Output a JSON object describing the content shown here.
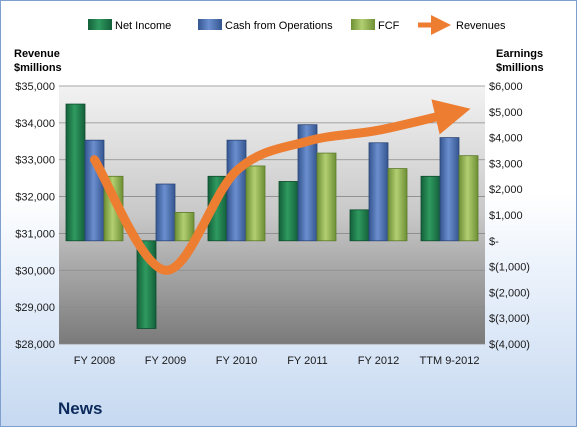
{
  "chart_data": {
    "type": "bar",
    "categories": [
      "FY 2008",
      "FY 2009",
      "FY 2010",
      "FY 2011",
      "FY 2012",
      "TTM 9-2012"
    ],
    "series": [
      {
        "name": "Net Income",
        "axis": "right",
        "values": [
          5300,
          -3400,
          2500,
          2300,
          1200,
          2500
        ],
        "color": "#1f7a4a"
      },
      {
        "name": "Cash from Operations",
        "axis": "right",
        "values": [
          3900,
          2200,
          3900,
          4500,
          3800,
          4000
        ],
        "color": "#4a6fb0"
      },
      {
        "name": "FCF",
        "axis": "right",
        "values": [
          2500,
          1100,
          2900,
          3400,
          2800,
          3300
        ],
        "color": "#8fb050"
      }
    ],
    "line_series": {
      "name": "Revenues",
      "axis": "left",
      "values": [
        33000,
        30000,
        32700,
        33500,
        33800,
        34250
      ],
      "color": "#ed7d31"
    },
    "left_axis": {
      "title": "Revenue $millions",
      "ylim": [
        28000,
        35000
      ],
      "ticks": [
        "$28,000",
        "$29,000",
        "$30,000",
        "$31,000",
        "$32,000",
        "$33,000",
        "$34,000",
        "$35,000"
      ]
    },
    "right_axis": {
      "title": "Earnings $millions",
      "ylim": [
        -4000,
        6000
      ],
      "ticks": [
        "$(4,000)",
        "$(3,000)",
        "$(2,000)",
        "$(1,000)",
        "$-",
        "$1,000",
        "$2,000",
        "$3,000",
        "$4,000",
        "$5,000",
        "$6,000"
      ]
    },
    "legend": {
      "position": "top",
      "items": [
        "Net Income",
        "Cash from Operations",
        "FCF",
        "Revenues"
      ]
    },
    "grid": true
  },
  "labels": {
    "left_title_line1": "Revenue",
    "left_title_line2": "$millions",
    "right_title_line1": "Earnings",
    "right_title_line2": "$millions",
    "footer": "News"
  }
}
